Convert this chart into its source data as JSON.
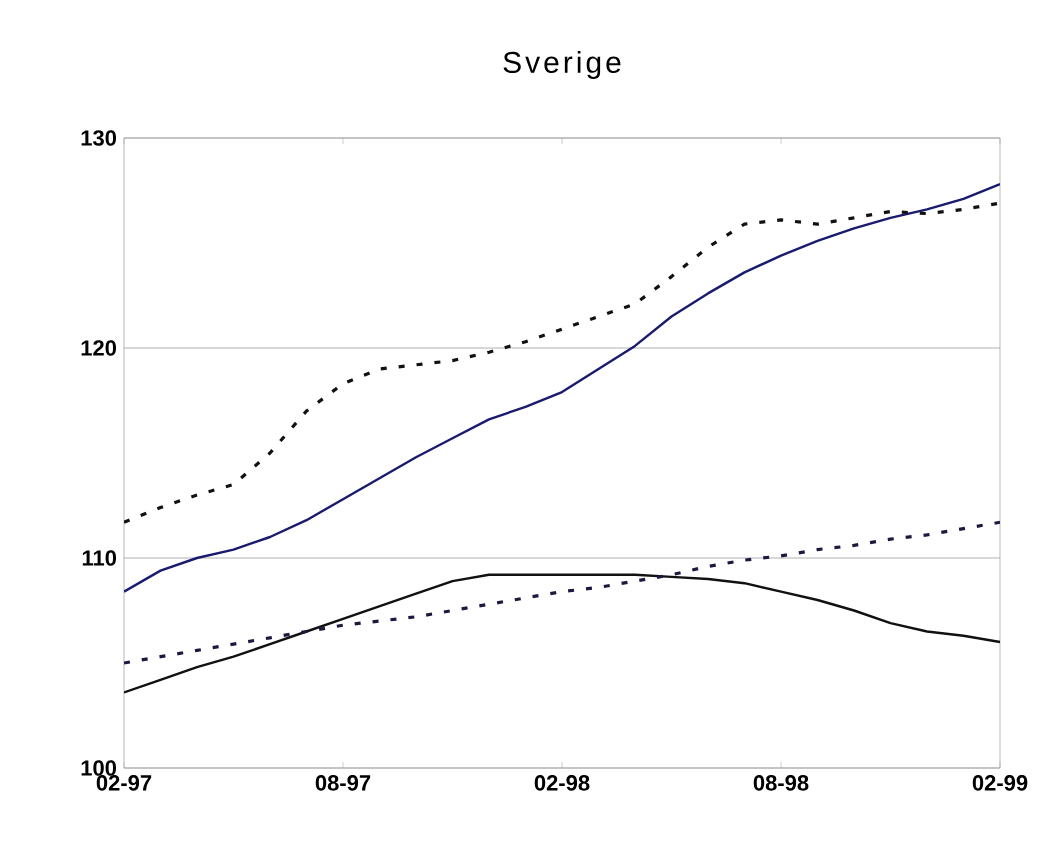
{
  "chart_data": {
    "type": "line",
    "title": "Sverige",
    "categories": [
      "02-97",
      null,
      null,
      null,
      null,
      null,
      "08-97",
      null,
      null,
      null,
      null,
      null,
      "02-98",
      null,
      null,
      null,
      null,
      null,
      "08-98",
      null,
      null,
      null,
      null,
      null,
      "02-99"
    ],
    "series": [
      {
        "color": "#1a1a6e",
        "line_style": "solid",
        "values": [
          108.4,
          109.4,
          110.0,
          110.4,
          111.0,
          111.8,
          112.8,
          113.8,
          114.8,
          115.7,
          116.6,
          117.2,
          117.9,
          119.0,
          120.1,
          121.5,
          122.6,
          123.6,
          124.4,
          125.1,
          125.7,
          126.2,
          126.6,
          127.1,
          127.8
        ]
      },
      {
        "color": "#111111",
        "line_style": "dotted",
        "values": [
          111.7,
          112.4,
          113.0,
          113.5,
          115.0,
          117.0,
          118.3,
          119.0,
          119.2,
          119.4,
          119.8,
          120.3,
          120.9,
          121.5,
          122.1,
          123.4,
          124.8,
          125.9,
          126.1,
          125.9,
          126.2,
          126.5,
          126.4,
          126.6,
          126.9
        ]
      },
      {
        "color": "#111111",
        "line_style": "solid",
        "values": [
          103.6,
          104.2,
          104.8,
          105.3,
          105.9,
          106.5,
          107.1,
          107.7,
          108.3,
          108.9,
          109.2,
          109.2,
          109.2,
          109.2,
          109.2,
          109.1,
          109.0,
          108.8,
          108.4,
          108.0,
          107.5,
          106.9,
          106.5,
          106.3,
          106.0
        ]
      },
      {
        "color": "#1a1a3e",
        "line_style": "dotted",
        "values": [
          105.0,
          105.3,
          105.6,
          105.9,
          106.2,
          106.5,
          106.8,
          107.0,
          107.2,
          107.5,
          107.8,
          108.1,
          108.4,
          108.6,
          108.9,
          109.2,
          109.6,
          109.9,
          110.1,
          110.4,
          110.6,
          110.9,
          111.1,
          111.4,
          111.7
        ]
      }
    ],
    "ylim": [
      100,
      130
    ],
    "yticks": [
      100,
      110,
      120,
      130
    ],
    "grid": "y"
  }
}
